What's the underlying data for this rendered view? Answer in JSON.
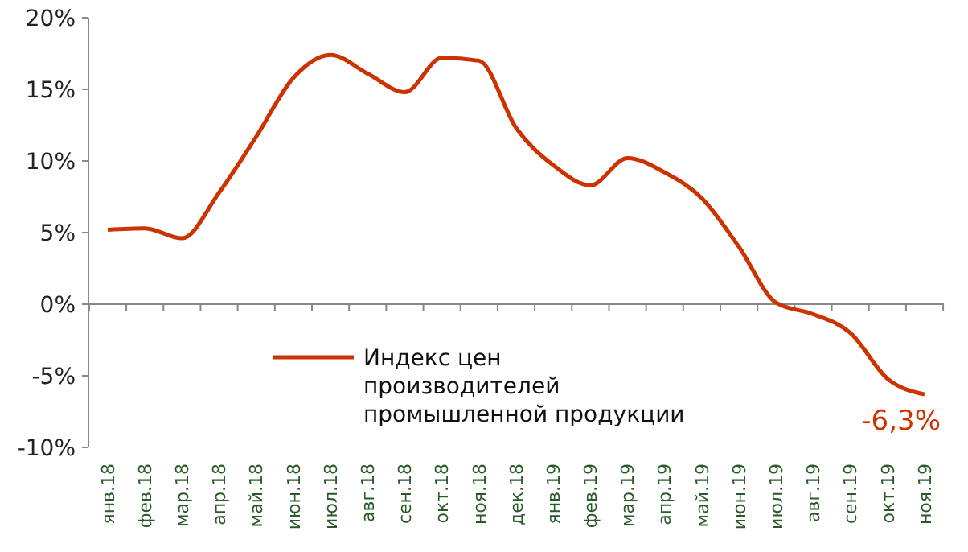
{
  "chart_data": {
    "type": "line",
    "categories": [
      "янв.18",
      "фев.18",
      "мар.18",
      "апр.18",
      "май.18",
      "июн.18",
      "июл.18",
      "авг.18",
      "сен.18",
      "окт.18",
      "ноя.18",
      "дек.18",
      "янв.19",
      "фев.19",
      "мар.19",
      "апр.19",
      "май.19",
      "июн.19",
      "июл.19",
      "авг.19",
      "сен.19",
      "окт.19",
      "ноя.19"
    ],
    "series": [
      {
        "name": "Индекс цен производителей промышленной продукции",
        "color": "#cc3300",
        "values": [
          5.2,
          5.3,
          4.6,
          7.8,
          11.7,
          15.8,
          17.4,
          16.1,
          14.8,
          17.2,
          17.0,
          12.3,
          9.7,
          8.3,
          10.2,
          9.2,
          7.4,
          4.0,
          0.1,
          -0.7,
          -2.0,
          -5.2,
          -6.3
        ]
      }
    ],
    "ylim": [
      -10,
      20
    ],
    "yticks": [
      {
        "value": -10,
        "label": "-10%"
      },
      {
        "value": -5,
        "label": "-5%"
      },
      {
        "value": 0,
        "label": "0%"
      },
      {
        "value": 5,
        "label": "5%"
      },
      {
        "value": 10,
        "label": "10%"
      },
      {
        "value": 15,
        "label": "15%"
      },
      {
        "value": 20,
        "label": "20%"
      }
    ],
    "legend": "bottom",
    "marker": "none",
    "line_style": "solid",
    "annotations": [
      {
        "text": "-6,3%",
        "x": "ноя.19",
        "y": -6.3
      }
    ]
  }
}
